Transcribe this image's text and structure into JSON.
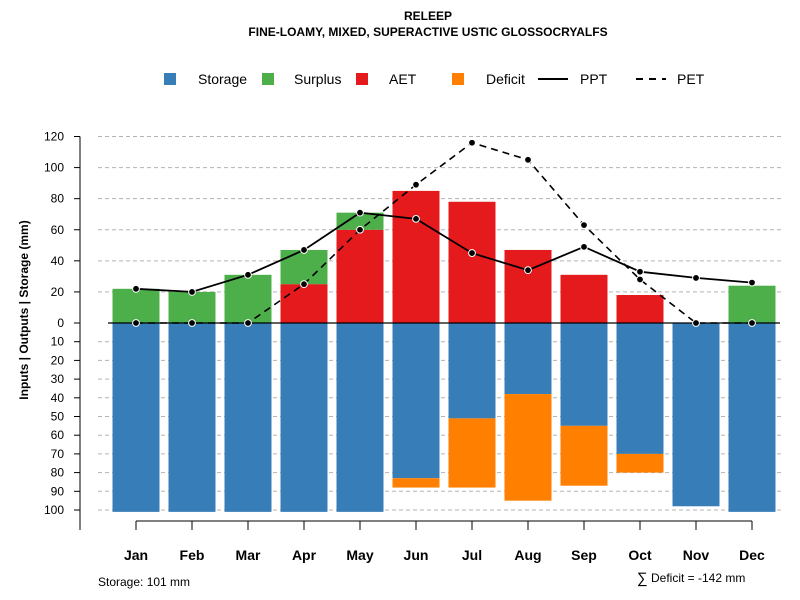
{
  "chart_data": {
    "type": "bar",
    "title": "RELEEP",
    "subtitle": "FINE-LOAMY, MIXED, SUPERACTIVE USTIC GLOSSOCRYALFS",
    "ylabel": "Inputs | Outputs | Storage    (mm)",
    "categories": [
      "Jan",
      "Feb",
      "Mar",
      "Apr",
      "May",
      "Jun",
      "Jul",
      "Aug",
      "Sep",
      "Oct",
      "Nov",
      "Dec"
    ],
    "upper_ticks": [
      "0",
      "20",
      "40",
      "60",
      "80",
      "100",
      "120"
    ],
    "lower_ticks": [
      "10",
      "20",
      "30",
      "40",
      "50",
      "60",
      "70",
      "80",
      "90",
      "100"
    ],
    "ylim_upper": [
      0,
      120
    ],
    "ylim_lower": [
      0,
      100
    ],
    "series": [
      {
        "name": "Storage",
        "color": "#377EB8",
        "values": [
          101,
          101,
          101,
          101,
          101,
          83,
          51,
          38,
          55,
          70,
          98,
          101
        ]
      },
      {
        "name": "Surplus",
        "color": "#4DAF4A",
        "values": [
          22,
          20,
          31,
          22,
          11,
          0,
          0,
          0,
          0,
          0,
          0,
          24
        ]
      },
      {
        "name": "AET",
        "color": "#E41A1C",
        "values": [
          0,
          0,
          0,
          25,
          60,
          85,
          78,
          47,
          31,
          18,
          0,
          0
        ]
      },
      {
        "name": "Deficit",
        "color": "#FF7F00",
        "values": [
          0,
          0,
          0,
          0,
          0,
          5,
          37,
          57,
          32,
          10,
          0,
          0
        ]
      },
      {
        "name": "PPT",
        "style": "solid",
        "values": [
          22,
          20,
          31,
          47,
          71,
          67,
          45,
          34,
          49,
          33,
          29,
          26
        ]
      },
      {
        "name": "PET",
        "style": "dashed",
        "values": [
          0,
          0,
          0,
          25,
          60,
          89,
          116,
          105,
          63,
          28,
          0,
          0
        ]
      }
    ],
    "legend_position": "top",
    "grid": true
  },
  "footer": {
    "storage_note": "Storage: 101 mm",
    "deficit_symbol": "∑",
    "deficit_note": "Deficit = -142 mm"
  }
}
